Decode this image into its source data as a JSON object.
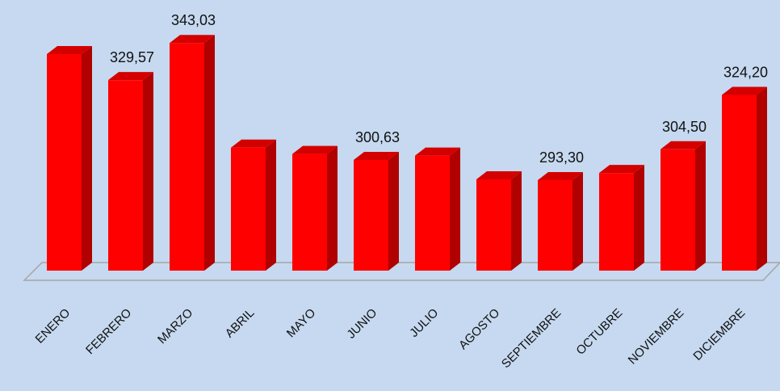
{
  "chart_data": {
    "type": "bar3d",
    "categories": [
      "ENERO",
      "FEBRERO",
      "MARZO",
      "ABRIL",
      "MAYO",
      "JUNIO",
      "JULIO",
      "AGOSTO",
      "SEPTIEMBRE",
      "OCTUBRE",
      "NOVIEMBRE",
      "DICIEMBRE"
    ],
    "values": [
      339.0,
      329.57,
      343.03,
      305.1,
      302.8,
      300.63,
      302.2,
      293.6,
      293.3,
      295.9,
      304.5,
      324.2
    ],
    "value_labels": [
      null,
      "329,57",
      "343,03",
      null,
      null,
      "300,63",
      null,
      null,
      "293,30",
      null,
      "304,50",
      "324,20"
    ],
    "color": "#ff0000",
    "ylim": [
      260.5,
      345
    ]
  }
}
